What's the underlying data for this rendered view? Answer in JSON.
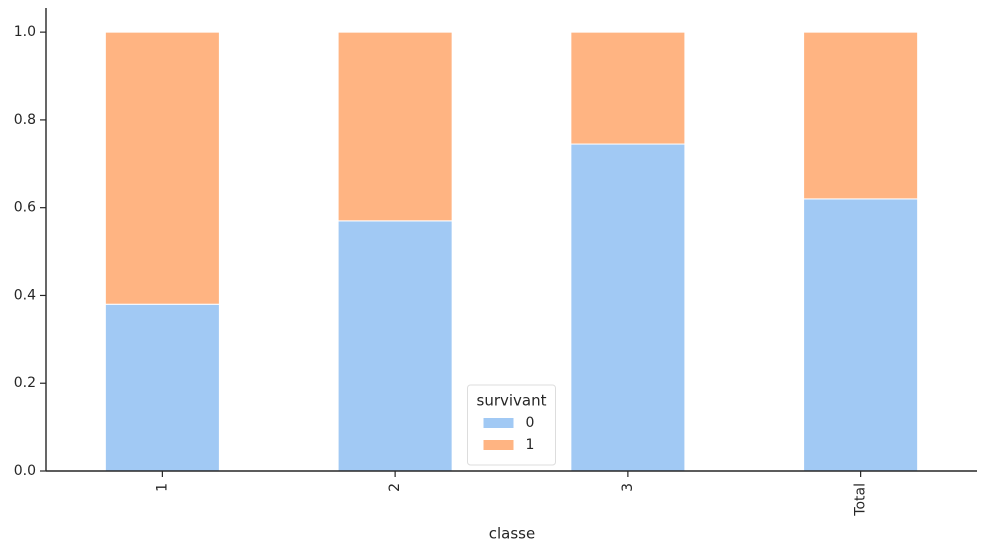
{
  "chart_data": {
    "type": "stacked_bar",
    "x_label": "classe",
    "categories": [
      "1",
      "2",
      "3",
      "Total"
    ],
    "series": [
      {
        "name": "0",
        "color": "#a1c9f4",
        "values": [
          0.38,
          0.57,
          0.745,
          0.62
        ]
      },
      {
        "name": "1",
        "color": "#ffb482",
        "values": [
          0.62,
          0.43,
          0.255,
          0.38
        ]
      }
    ],
    "legend_title": "survivant",
    "legend_position": "lower center",
    "ylim": [
      0,
      1.055
    ],
    "yticks": [
      {
        "value": 0,
        "label": "0.0"
      },
      {
        "value": 0.2,
        "label": "0.2"
      },
      {
        "value": 0.4,
        "label": "0.4"
      },
      {
        "value": 0.6,
        "label": "0.6"
      },
      {
        "value": 0.8,
        "label": "0.8"
      },
      {
        "value": 1,
        "label": "1.0"
      }
    ]
  }
}
